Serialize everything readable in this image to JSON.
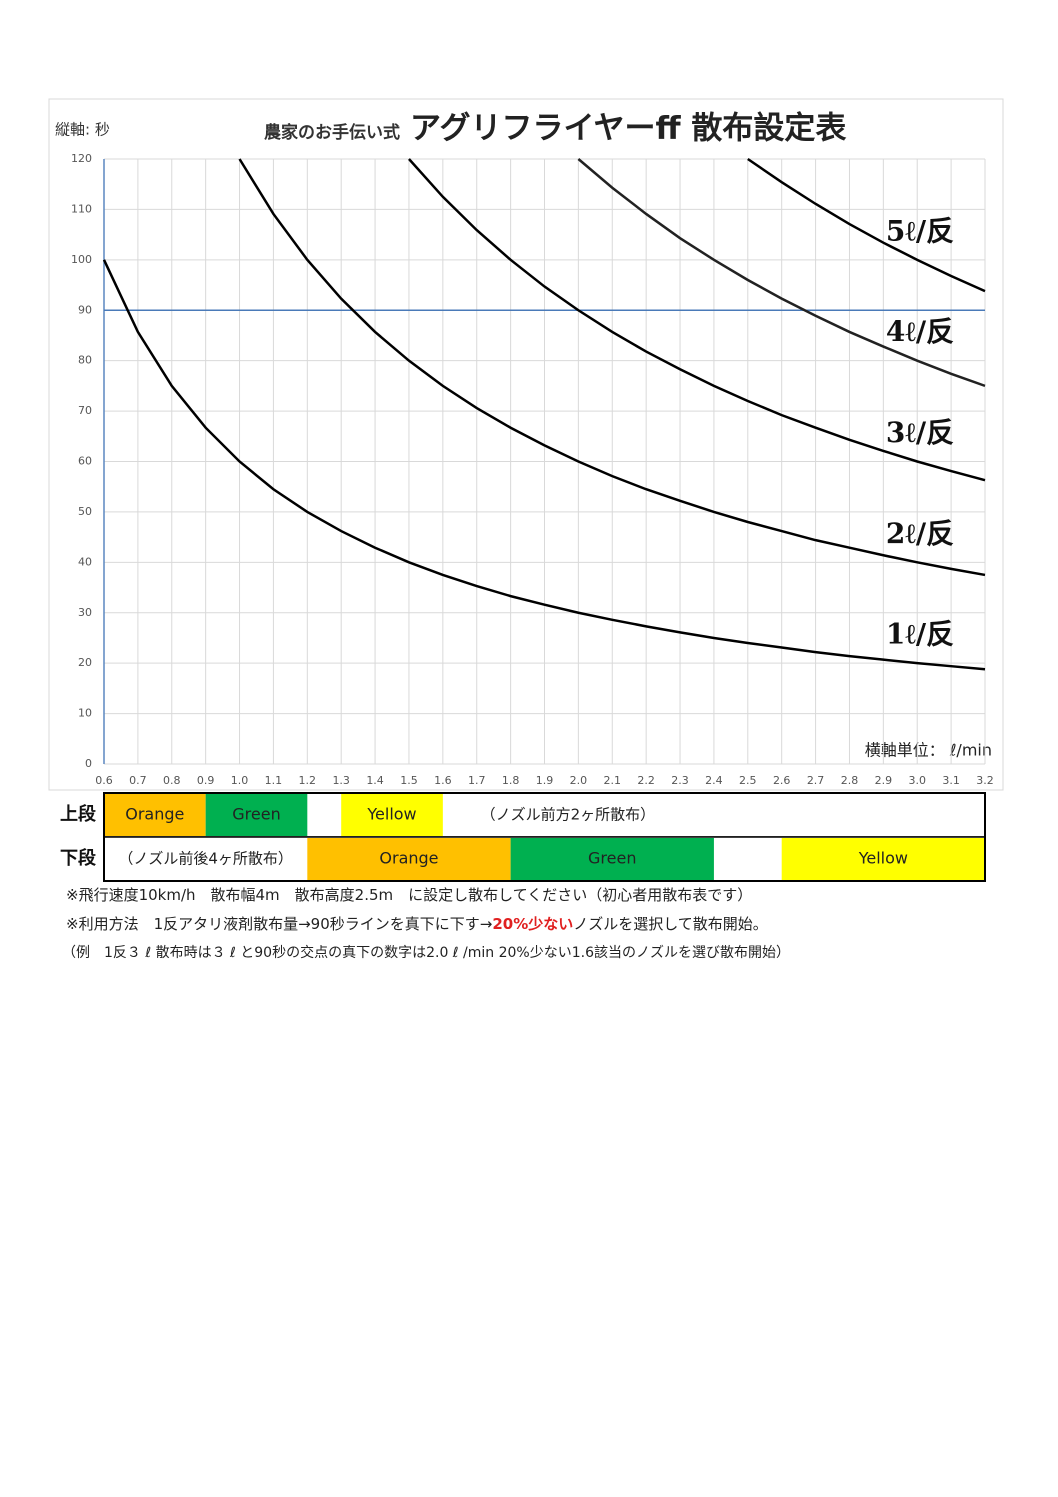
{
  "chart_data": {
    "type": "line",
    "y_axis_label": "縦軸: 秒",
    "title_prefix": "農家のお手伝い式",
    "title": "アグリフライヤーff 散布設定表",
    "x_axis_label": "横軸単位： ℓ/min",
    "x": [
      0.6,
      0.7,
      0.8,
      0.9,
      1.0,
      1.1,
      1.2,
      1.3,
      1.4,
      1.5,
      1.6,
      1.7,
      1.8,
      1.9,
      2.0,
      2.1,
      2.2,
      2.3,
      2.4,
      2.5,
      2.6,
      2.7,
      2.8,
      2.9,
      3.0,
      3.1,
      3.2
    ],
    "series": [
      {
        "name": "1ℓ/反",
        "color": "#000000",
        "values": [
          100,
          85.7,
          75,
          66.7,
          60,
          54.5,
          50,
          46.2,
          42.9,
          40,
          37.5,
          35.3,
          33.3,
          31.6,
          30,
          28.6,
          27.3,
          26.1,
          25,
          24,
          23.1,
          22.2,
          21.4,
          20.7,
          20,
          19.4,
          18.8
        ]
      },
      {
        "name": "2ℓ/反",
        "color": "#000000",
        "values": [
          null,
          null,
          null,
          null,
          120,
          109.1,
          100,
          92.3,
          85.7,
          80,
          75,
          70.6,
          66.7,
          63.2,
          60,
          57.1,
          54.5,
          52.2,
          50,
          48,
          46.2,
          44.4,
          42.9,
          41.4,
          40,
          38.7,
          37.5
        ]
      },
      {
        "name": "3ℓ/反",
        "color": "#000000",
        "values": [
          null,
          null,
          null,
          null,
          null,
          null,
          null,
          null,
          null,
          120,
          112.5,
          105.9,
          100,
          94.7,
          90,
          85.7,
          81.8,
          78.3,
          75,
          72,
          69.2,
          66.7,
          64.3,
          62.1,
          60,
          58.1,
          56.3
        ]
      },
      {
        "name": "4ℓ/反",
        "color": "#222222",
        "values": [
          null,
          null,
          null,
          null,
          null,
          null,
          null,
          null,
          null,
          null,
          null,
          null,
          null,
          null,
          120,
          114.3,
          109.1,
          104.3,
          100,
          96,
          92.3,
          88.9,
          85.7,
          82.8,
          80,
          77.4,
          75
        ]
      },
      {
        "name": "5ℓ/反",
        "color": "#000000",
        "values": [
          null,
          null,
          null,
          null,
          null,
          null,
          null,
          null,
          null,
          null,
          null,
          null,
          null,
          null,
          null,
          null,
          null,
          null,
          null,
          120,
          115.4,
          111.1,
          107.1,
          103.4,
          100,
          96.8,
          93.8
        ]
      }
    ],
    "reference_line": 90,
    "reference_color": "#4a7ab8",
    "xlim": [
      0.6,
      3.2
    ],
    "ylim": [
      0,
      120
    ],
    "xticks": [
      0.6,
      0.7,
      0.8,
      0.9,
      {
        "value": 1,
        "label": "1.0"
      },
      1.1,
      1.2,
      1.3,
      1.4,
      1.5,
      1.6,
      1.7,
      1.8,
      1.9,
      {
        "value": 2,
        "label": "2.0"
      },
      2.1,
      2.2,
      2.3,
      2.4,
      2.5,
      2.6,
      2.7,
      2.8,
      2.9,
      {
        "value": 3,
        "label": "3.0"
      },
      3.1,
      3.2
    ],
    "yticks": [
      0,
      10,
      20,
      30,
      40,
      50,
      60,
      70,
      80,
      90,
      100,
      110,
      120
    ],
    "grid": true
  },
  "nozzle_table": {
    "rows": [
      {
        "label": "上段",
        "cells": [
          {
            "text": "Orange",
            "color": "#ffc000",
            "from": 0.6,
            "to": 0.9
          },
          {
            "text": "Green",
            "color": "#00b050",
            "from": 0.9,
            "to": 1.2
          },
          {
            "text": "Yellow",
            "color": "#ffff00",
            "from": 1.3,
            "to": 1.6
          }
        ],
        "note": "（ノズル前方2ヶ所散布）"
      },
      {
        "label": "下段",
        "cells": [
          {
            "text": "Orange",
            "color": "#ffc000",
            "from": 1.2,
            "to": 1.8
          },
          {
            "text": "Green",
            "color": "#00b050",
            "from": 1.8,
            "to": 2.4
          },
          {
            "text": "Yellow",
            "color": "#ffff00",
            "from": 2.6,
            "to": 3.2
          }
        ],
        "note": "（ノズル前後4ヶ所散布）"
      }
    ]
  },
  "notes": [
    "※飛行速度10km/h　散布幅4m　散布高度2.5m　に設定し散布してください（初心者用散布表です）",
    {
      "before": "※利用方法　1反アタリ液剤散布量→90秒ラインを真下に下す→",
      "highlight": "20%少ない",
      "after": "ノズルを選択して散布開始。"
    },
    "（例　1反３ ℓ 散布時は３ ℓ と90秒の交点の真下の数字は2.0 ℓ /min 20%少ない1.6該当のノズルを選び散布開始）"
  ]
}
